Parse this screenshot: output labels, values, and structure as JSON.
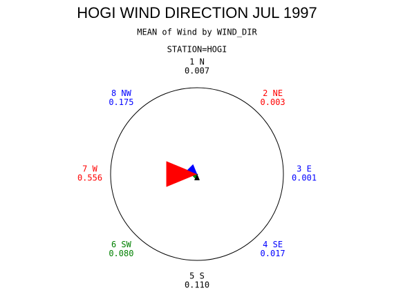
{
  "chart_data": {
    "type": "star",
    "title": "HOGI WIND DIRECTION JUL 1997",
    "subtitle": "MEAN of Wind by WIND_DIR",
    "group_label": "STATION=HOGI",
    "categories": [
      "1 N",
      "2 NE",
      "3 E",
      "4 SE",
      "5 S",
      "6 SW",
      "7 W",
      "8 NW"
    ],
    "values": [
      0.007,
      0.003,
      0.001,
      0.017,
      0.11,
      0.08,
      0.556,
      0.175
    ],
    "value_labels": [
      "0.007",
      "0.003",
      "0.001",
      "0.017",
      "0.110",
      "0.080",
      "0.556",
      "0.175"
    ],
    "colors": [
      "#000000",
      "#ff0000",
      "#0000ff",
      "#0000ff",
      "#000000",
      "#008000",
      "#ff0000",
      "#0000ff"
    ]
  }
}
